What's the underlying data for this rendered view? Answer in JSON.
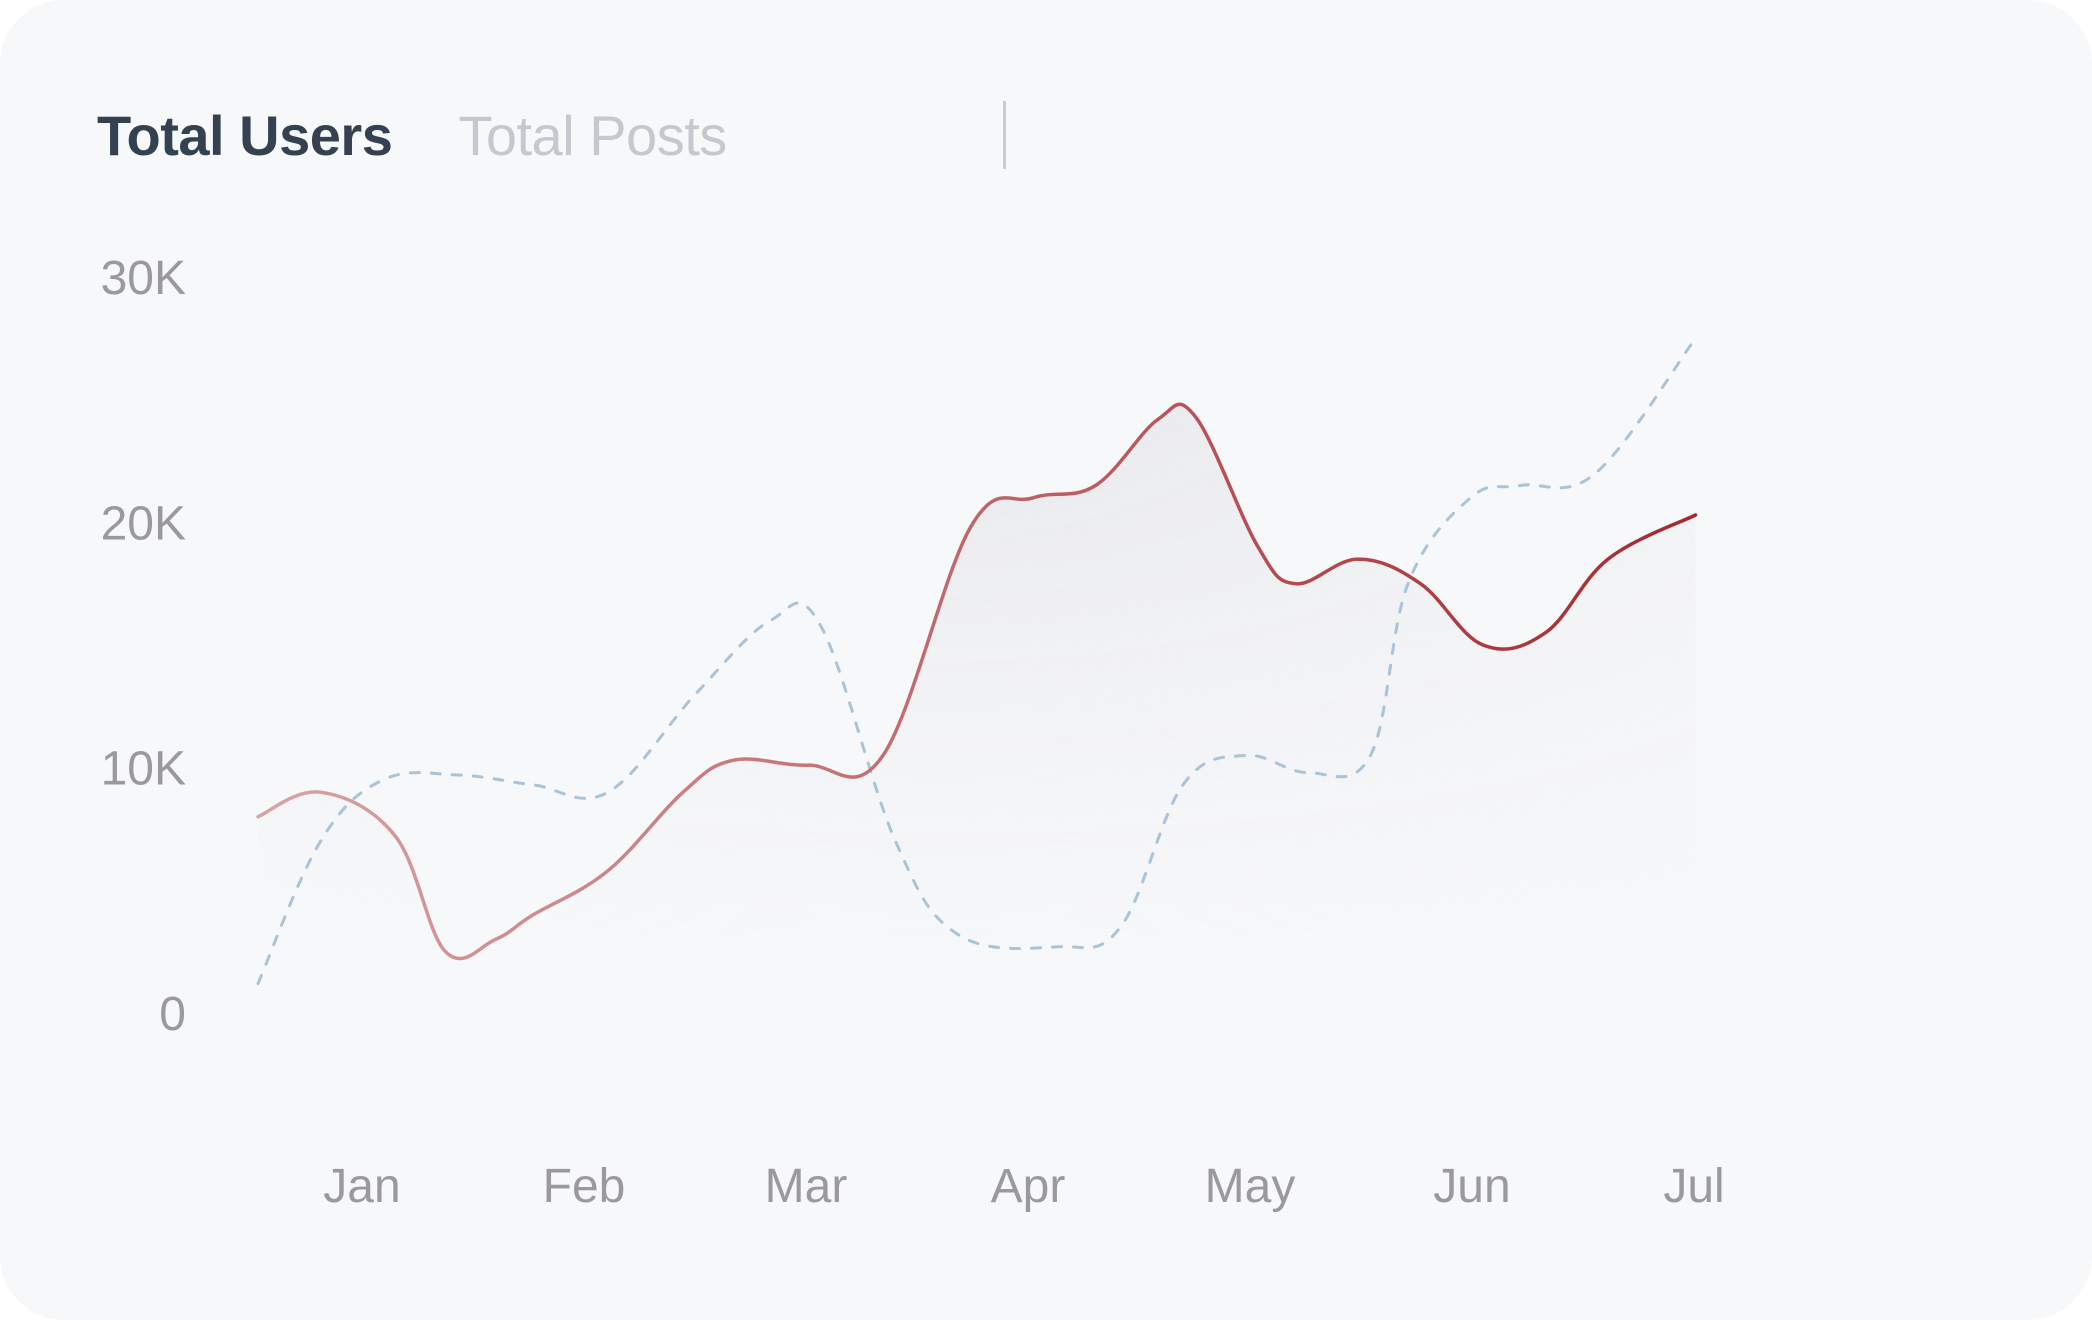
{
  "tabs": [
    {
      "label": "Total Users",
      "active": true
    },
    {
      "label": "Total Posts",
      "active": false
    }
  ],
  "colors": {
    "card_background": "#f7f8fa",
    "active_tab": "#334150",
    "inactive_tab": "#c5c9cf",
    "tick_label": "#9a9a9c",
    "users_line_start": "#d9a3a3",
    "users_line_end": "#a3232a",
    "posts_line": "#a9c4d8",
    "area_fill": "#e6e7ea"
  },
  "chart_data": {
    "type": "line",
    "x_categories": [
      "Jan",
      "Feb",
      "Mar",
      "Apr",
      "May",
      "Jun",
      "Jul"
    ],
    "y_ticks": [
      "0",
      "10K",
      "20K",
      "30K"
    ],
    "ylim": [
      0,
      30000
    ],
    "grid": false,
    "legend": "none",
    "series": [
      {
        "key": "users",
        "style": "solid-gradient",
        "points": [
          {
            "x": 0.0,
            "y": 8000
          },
          {
            "x": 0.25,
            "y": 9000
          },
          {
            "x": 0.55,
            "y": 7200
          },
          {
            "x": 0.75,
            "y": 2500
          },
          {
            "x": 0.95,
            "y": 3000
          },
          {
            "x": 1.1,
            "y": 4000
          },
          {
            "x": 1.4,
            "y": 5800
          },
          {
            "x": 1.7,
            "y": 9000
          },
          {
            "x": 1.9,
            "y": 10300
          },
          {
            "x": 2.2,
            "y": 10100
          },
          {
            "x": 2.5,
            "y": 10500
          },
          {
            "x": 2.85,
            "y": 19800
          },
          {
            "x": 3.1,
            "y": 21000
          },
          {
            "x": 3.35,
            "y": 21500
          },
          {
            "x": 3.6,
            "y": 24200
          },
          {
            "x": 3.75,
            "y": 24300
          },
          {
            "x": 4.0,
            "y": 19000
          },
          {
            "x": 4.15,
            "y": 17500
          },
          {
            "x": 4.4,
            "y": 18500
          },
          {
            "x": 4.65,
            "y": 17500
          },
          {
            "x": 4.9,
            "y": 15000
          },
          {
            "x": 5.15,
            "y": 15500
          },
          {
            "x": 5.4,
            "y": 18500
          },
          {
            "x": 5.75,
            "y": 20300
          }
        ]
      },
      {
        "key": "posts",
        "style": "dashed",
        "points": [
          {
            "x": 0.0,
            "y": 1200
          },
          {
            "x": 0.25,
            "y": 7000
          },
          {
            "x": 0.5,
            "y": 9500
          },
          {
            "x": 0.8,
            "y": 9700
          },
          {
            "x": 1.1,
            "y": 9300
          },
          {
            "x": 1.4,
            "y": 9000
          },
          {
            "x": 1.75,
            "y": 13000
          },
          {
            "x": 2.05,
            "y": 16000
          },
          {
            "x": 2.25,
            "y": 15800
          },
          {
            "x": 2.55,
            "y": 7000
          },
          {
            "x": 2.8,
            "y": 3200
          },
          {
            "x": 3.2,
            "y": 2700
          },
          {
            "x": 3.45,
            "y": 3500
          },
          {
            "x": 3.7,
            "y": 9300
          },
          {
            "x": 3.95,
            "y": 10500
          },
          {
            "x": 4.2,
            "y": 9800
          },
          {
            "x": 4.45,
            "y": 10500
          },
          {
            "x": 4.6,
            "y": 17500
          },
          {
            "x": 4.85,
            "y": 21000
          },
          {
            "x": 5.05,
            "y": 21500
          },
          {
            "x": 5.35,
            "y": 22000
          },
          {
            "x": 5.75,
            "y": 27500
          }
        ]
      }
    ]
  }
}
